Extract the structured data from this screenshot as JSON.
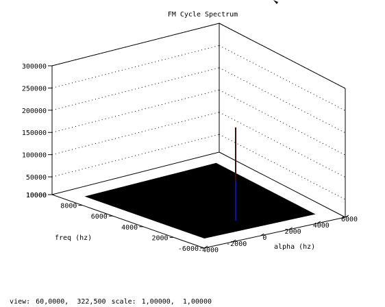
{
  "chart_data": {
    "type": "surface",
    "title": "FM Cycle Spectrum",
    "xlabel": "alpha (hz)",
    "ylabel": "freq (hz)",
    "zlabel": "",
    "x_ticks": [
      "-4000",
      "-2000",
      "0",
      "2000",
      "4000",
      "6000"
    ],
    "y_ticks": [
      "-6000",
      "2000",
      "4000",
      "6000",
      "8000",
      "10000"
    ],
    "z_ticks": [
      "10000",
      "50000",
      "100000",
      "150000",
      "200000",
      "250000",
      "300000"
    ],
    "zlim": [
      10000,
      300000
    ],
    "grid": true,
    "colors": {
      "surface": "#000000",
      "peak_top": "#3a1010",
      "peak_bottom": "#1010a0"
    },
    "series": [
      {
        "surface_level": 10000,
        "peak_value": 220000
      }
    ]
  },
  "status": {
    "view_label": "view:",
    "view_value": "60,0000,  322,500",
    "scale_label": "scale:",
    "scale_value": "1,00000,  1,00000"
  }
}
